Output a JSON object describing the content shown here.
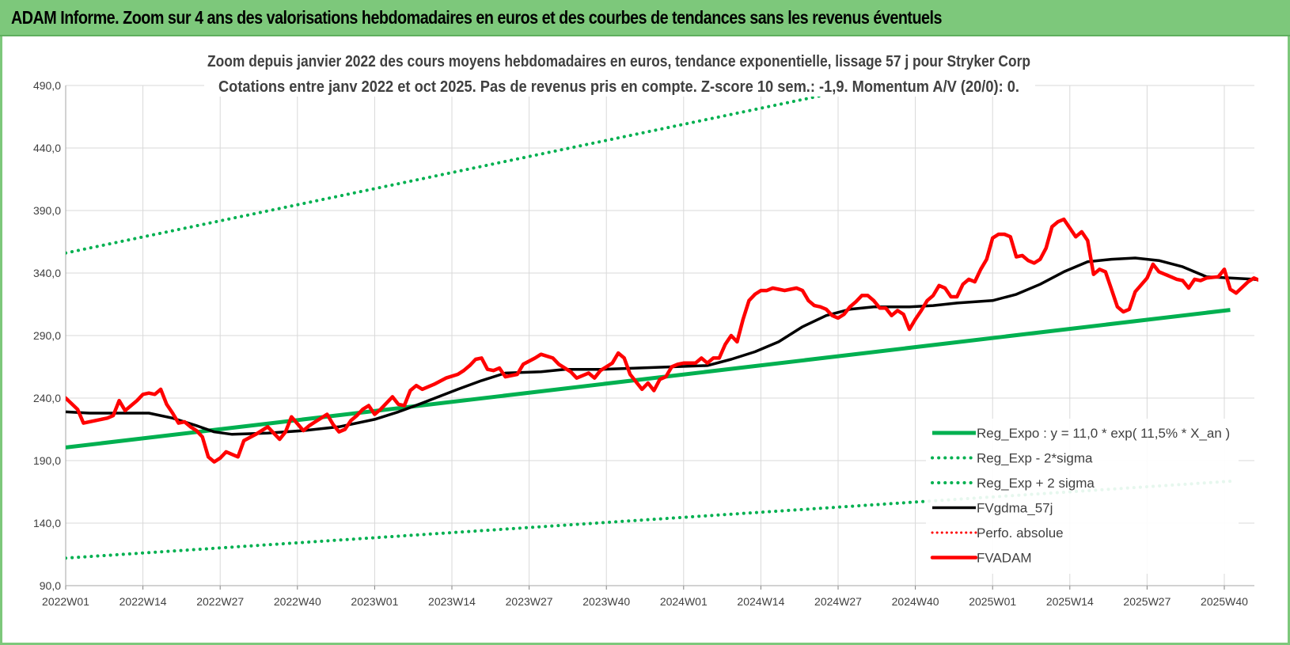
{
  "header": {
    "title": "ADAM Informe. Zoom sur 4 ans des valorisations hebdomadaires en euros et des courbes de tendances sans les revenus éventuels"
  },
  "chart_data": {
    "type": "line",
    "title": "Zoom depuis janvier 2022 des cours moyens hebdomadaires en euros, tendance exponentielle, lissage 57 j pour Stryker Corp",
    "subtitle": "Cotations entre janv 2022 et oct 2025. Pas de revenus pris en compte. Z-score 10 sem.: -1,9.  Momentum A/V (20/0): 0.",
    "ylim": [
      90,
      490
    ],
    "yticks": [
      "90,0",
      "140,0",
      "190,0",
      "240,0",
      "290,0",
      "340,0",
      "390,0",
      "440,0",
      "490,0"
    ],
    "xticks": [
      "2022W01",
      "2022W14",
      "2022W27",
      "2022W40",
      "2023W01",
      "2023W14",
      "2023W27",
      "2023W40",
      "2024W01",
      "2024W14",
      "2024W27",
      "2024W40",
      "2025W01",
      "2025W14",
      "2025W27",
      "2025W40"
    ],
    "grid": true,
    "legend_position": "bottom-right",
    "colors": {
      "trend": "#00b050",
      "smooth": "#000000",
      "price": "#ff0000",
      "perf": "#ff0000",
      "grid": "#d9d9d9"
    },
    "series": [
      {
        "name": "Reg_Expo : y = 11,0 * exp( 11,5% *  X_an )",
        "style": "solid-green",
        "values": [
          [
            0,
            200.5
          ],
          [
            196,
            310.5
          ]
        ]
      },
      {
        "name": "Reg_Exp - 2*sigma",
        "style": "dotted-green",
        "values": [
          [
            0,
            112
          ],
          [
            196,
            173.5
          ]
        ]
      },
      {
        "name": "Reg_Exp + 2 sigma",
        "style": "dotted-green",
        "values": [
          [
            0,
            356
          ],
          [
            196,
            550
          ]
        ]
      },
      {
        "name": "FVgdma_57j",
        "style": "solid-black",
        "values": [
          [
            0,
            229
          ],
          [
            4,
            228
          ],
          [
            10,
            228
          ],
          [
            14,
            228
          ],
          [
            18,
            224
          ],
          [
            22,
            218
          ],
          [
            25,
            213
          ],
          [
            28,
            211
          ],
          [
            34,
            212
          ],
          [
            40,
            214
          ],
          [
            46,
            217
          ],
          [
            52,
            223
          ],
          [
            56,
            229
          ],
          [
            60,
            236
          ],
          [
            66,
            247
          ],
          [
            70,
            254
          ],
          [
            74,
            260
          ],
          [
            80,
            261
          ],
          [
            84,
            263
          ],
          [
            90,
            263
          ],
          [
            96,
            264
          ],
          [
            102,
            265
          ],
          [
            108,
            266
          ],
          [
            112,
            271
          ],
          [
            116,
            277
          ],
          [
            120,
            285
          ],
          [
            124,
            297
          ],
          [
            128,
            306
          ],
          [
            132,
            311
          ],
          [
            136,
            313
          ],
          [
            142,
            313
          ],
          [
            146,
            314
          ],
          [
            150,
            316
          ],
          [
            156,
            318
          ],
          [
            160,
            323
          ],
          [
            164,
            331
          ],
          [
            168,
            341
          ],
          [
            172,
            349
          ],
          [
            176,
            351
          ],
          [
            180,
            352
          ],
          [
            184,
            350
          ],
          [
            188,
            345
          ],
          [
            192,
            337
          ],
          [
            196,
            336
          ],
          [
            200,
            335
          ],
          [
            204,
            332
          ],
          [
            208,
            330
          ],
          [
            212,
            327
          ],
          [
            216,
            325
          ],
          [
            222,
            322
          ]
        ]
      },
      {
        "name": "Perfo. absolue",
        "style": "dotted-red",
        "values": []
      },
      {
        "name": "FVADAM",
        "style": "solid-red",
        "values": [
          [
            0,
            240
          ],
          [
            2,
            231
          ],
          [
            3,
            220
          ],
          [
            5,
            222
          ],
          [
            7,
            224
          ],
          [
            8,
            226
          ],
          [
            9,
            238
          ],
          [
            10,
            230
          ],
          [
            12,
            238
          ],
          [
            13,
            243
          ],
          [
            14,
            244
          ],
          [
            15,
            243
          ],
          [
            16,
            247
          ],
          [
            17,
            235
          ],
          [
            18,
            228
          ],
          [
            19,
            220
          ],
          [
            20,
            221
          ],
          [
            21,
            217
          ],
          [
            22,
            214
          ],
          [
            23,
            209
          ],
          [
            24,
            193
          ],
          [
            25,
            189
          ],
          [
            26,
            192
          ],
          [
            27,
            197
          ],
          [
            29,
            193
          ],
          [
            30,
            206
          ],
          [
            32,
            211
          ],
          [
            34,
            217
          ],
          [
            35,
            212
          ],
          [
            36,
            207
          ],
          [
            37,
            213
          ],
          [
            38,
            225
          ],
          [
            40,
            214
          ],
          [
            41,
            218
          ],
          [
            42,
            221
          ],
          [
            44,
            227
          ],
          [
            45,
            219
          ],
          [
            46,
            213
          ],
          [
            47,
            215
          ],
          [
            48,
            222
          ],
          [
            49,
            226
          ],
          [
            50,
            231
          ],
          [
            51,
            234
          ],
          [
            52,
            227
          ],
          [
            53,
            231
          ],
          [
            55,
            241
          ],
          [
            56,
            235
          ],
          [
            57,
            234
          ],
          [
            58,
            246
          ],
          [
            59,
            250
          ],
          [
            60,
            247
          ],
          [
            62,
            251
          ],
          [
            64,
            256
          ],
          [
            66,
            259
          ],
          [
            67,
            262
          ],
          [
            68,
            266
          ],
          [
            69,
            271
          ],
          [
            70,
            272
          ],
          [
            71,
            263
          ],
          [
            72,
            262
          ],
          [
            73,
            264
          ],
          [
            74,
            257
          ],
          [
            76,
            259
          ],
          [
            77,
            267
          ],
          [
            79,
            272
          ],
          [
            80,
            275
          ],
          [
            82,
            272
          ],
          [
            83,
            267
          ],
          [
            85,
            261
          ],
          [
            86,
            256
          ],
          [
            88,
            260
          ],
          [
            89,
            256
          ],
          [
            90,
            262
          ],
          [
            92,
            268
          ],
          [
            93,
            276
          ],
          [
            94,
            272
          ],
          [
            95,
            259
          ],
          [
            96,
            253
          ],
          [
            97,
            247
          ],
          [
            98,
            252
          ],
          [
            99,
            246
          ],
          [
            100,
            255
          ],
          [
            101,
            257
          ],
          [
            102,
            265
          ],
          [
            103,
            267
          ],
          [
            104,
            268
          ],
          [
            106,
            268
          ],
          [
            107,
            272
          ],
          [
            108,
            268
          ],
          [
            109,
            272
          ],
          [
            110,
            272
          ],
          [
            111,
            283
          ],
          [
            112,
            290
          ],
          [
            113,
            285
          ],
          [
            114,
            303
          ],
          [
            115,
            318
          ],
          [
            116,
            323
          ],
          [
            117,
            326
          ],
          [
            118,
            326
          ],
          [
            119,
            328
          ],
          [
            120,
            327
          ],
          [
            121,
            326
          ],
          [
            122,
            327
          ],
          [
            123,
            328
          ],
          [
            124,
            326
          ],
          [
            125,
            318
          ],
          [
            126,
            314
          ],
          [
            127,
            313
          ],
          [
            128,
            311
          ],
          [
            129,
            306
          ],
          [
            130,
            304
          ],
          [
            131,
            307
          ],
          [
            132,
            313
          ],
          [
            133,
            317
          ],
          [
            134,
            322
          ],
          [
            135,
            322
          ],
          [
            136,
            318
          ],
          [
            137,
            312
          ],
          [
            138,
            312
          ],
          [
            139,
            306
          ],
          [
            140,
            310
          ],
          [
            141,
            307
          ],
          [
            142,
            295
          ],
          [
            143,
            303
          ],
          [
            144,
            310
          ],
          [
            145,
            318
          ],
          [
            146,
            322
          ],
          [
            147,
            330
          ],
          [
            148,
            328
          ],
          [
            149,
            321
          ],
          [
            150,
            321
          ],
          [
            151,
            331
          ],
          [
            152,
            335
          ],
          [
            153,
            333
          ],
          [
            154,
            343
          ],
          [
            155,
            351
          ],
          [
            156,
            368
          ],
          [
            157,
            371
          ],
          [
            158,
            371
          ],
          [
            159,
            369
          ],
          [
            160,
            353
          ],
          [
            161,
            354
          ],
          [
            162,
            350
          ],
          [
            163,
            348
          ],
          [
            164,
            351
          ],
          [
            165,
            360
          ],
          [
            166,
            377
          ],
          [
            167,
            381
          ],
          [
            168,
            383
          ],
          [
            169,
            376
          ],
          [
            170,
            369
          ],
          [
            171,
            373
          ],
          [
            172,
            366
          ],
          [
            173,
            339
          ],
          [
            174,
            343
          ],
          [
            175,
            341
          ],
          [
            176,
            327
          ],
          [
            177,
            313
          ],
          [
            178,
            309
          ],
          [
            179,
            311
          ],
          [
            180,
            325
          ],
          [
            182,
            336
          ],
          [
            183,
            347
          ],
          [
            184,
            341
          ],
          [
            186,
            337
          ],
          [
            187,
            335
          ],
          [
            188,
            334
          ],
          [
            189,
            328
          ],
          [
            190,
            335
          ],
          [
            191,
            334
          ],
          [
            192,
            336
          ],
          [
            194,
            337
          ],
          [
            195,
            343
          ],
          [
            196,
            327
          ],
          [
            197,
            324
          ],
          [
            199,
            333
          ],
          [
            200,
            336
          ],
          [
            201,
            334
          ],
          [
            202,
            331
          ],
          [
            203,
            323
          ],
          [
            204,
            318
          ],
          [
            205,
            314
          ],
          [
            206,
            320
          ],
          [
            207,
            318
          ],
          [
            208,
            327
          ],
          [
            209,
            329
          ],
          [
            210,
            321
          ]
        ]
      }
    ]
  }
}
